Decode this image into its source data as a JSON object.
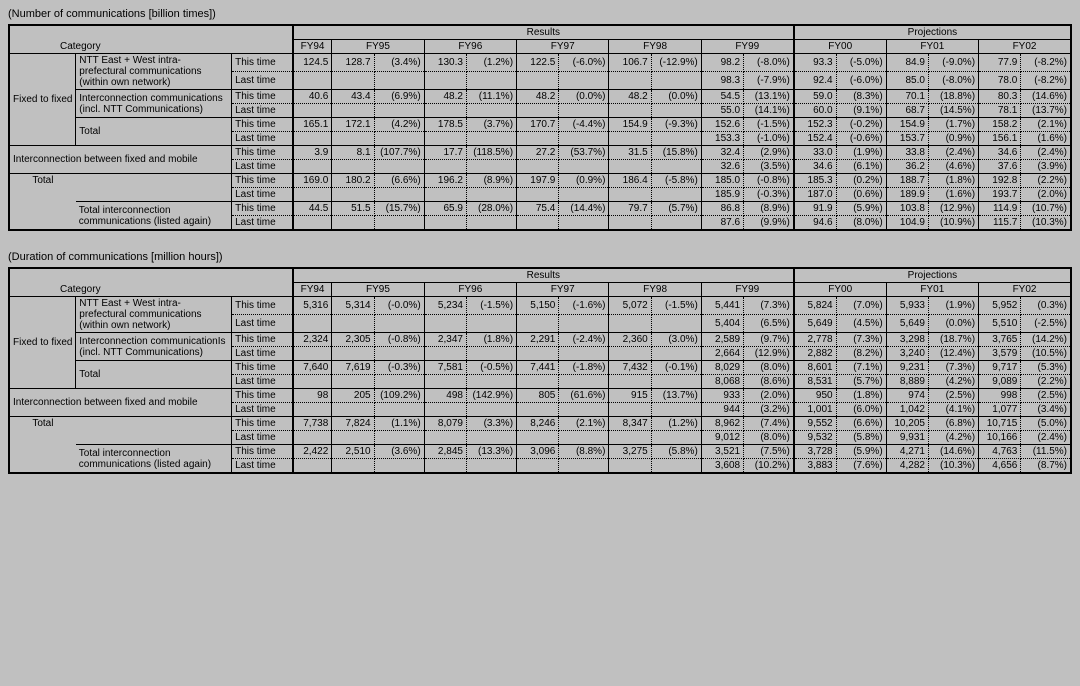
{
  "tables": [
    {
      "title": "(Number of communications [billion times])",
      "rows": [
        {
          "this": [
            "124.5",
            "128.7",
            "(3.4%)",
            "130.3",
            "(1.2%)",
            "122.5",
            "(-6.0%)",
            "106.7",
            "(-12.9%)",
            "98.2",
            "(-8.0%)",
            "93.3",
            "(-5.0%)",
            "84.9",
            "(-9.0%)",
            "77.9",
            "(-8.2%)"
          ],
          "last": [
            "",
            "",
            "",
            "",
            "",
            "",
            "",
            "",
            "",
            "98.3",
            "(-7.9%)",
            "92.4",
            "(-6.0%)",
            "85.0",
            "(-8.0%)",
            "78.0",
            "(-8.2%)"
          ]
        },
        {
          "this": [
            "40.6",
            "43.4",
            "(6.9%)",
            "48.2",
            "(11.1%)",
            "48.2",
            "(0.0%)",
            "48.2",
            "(0.0%)",
            "54.5",
            "(13.1%)",
            "59.0",
            "(8.3%)",
            "70.1",
            "(18.8%)",
            "80.3",
            "(14.6%)"
          ],
          "last": [
            "",
            "",
            "",
            "",
            "",
            "",
            "",
            "",
            "",
            "55.0",
            "(14.1%)",
            "60.0",
            "(9.1%)",
            "68.7",
            "(14.5%)",
            "78.1",
            "(13.7%)"
          ]
        },
        {
          "this": [
            "165.1",
            "172.1",
            "(4.2%)",
            "178.5",
            "(3.7%)",
            "170.7",
            "(-4.4%)",
            "154.9",
            "(-9.3%)",
            "152.6",
            "(-1.5%)",
            "152.3",
            "(-0.2%)",
            "154.9",
            "(1.7%)",
            "158.2",
            "(2.1%)"
          ],
          "last": [
            "",
            "",
            "",
            "",
            "",
            "",
            "",
            "",
            "",
            "153.3",
            "(-1.0%)",
            "152.4",
            "(-0.6%)",
            "153.7",
            "(0.9%)",
            "156.1",
            "(1.6%)"
          ]
        },
        {
          "this": [
            "3.9",
            "8.1",
            "(107.7%)",
            "17.7",
            "(118.5%)",
            "27.2",
            "(53.7%)",
            "31.5",
            "(15.8%)",
            "32.4",
            "(2.9%)",
            "33.0",
            "(1.9%)",
            "33.8",
            "(2.4%)",
            "34.6",
            "(2.4%)"
          ],
          "last": [
            "",
            "",
            "",
            "",
            "",
            "",
            "",
            "",
            "",
            "32.6",
            "(3.5%)",
            "34.6",
            "(6.1%)",
            "36.2",
            "(4.6%)",
            "37.6",
            "(3.9%)"
          ]
        },
        {
          "this": [
            "169.0",
            "180.2",
            "(6.6%)",
            "196.2",
            "(8.9%)",
            "197.9",
            "(0.9%)",
            "186.4",
            "(-5.8%)",
            "185.0",
            "(-0.8%)",
            "185.3",
            "(0.2%)",
            "188.7",
            "(1.8%)",
            "192.8",
            "(2.2%)"
          ],
          "last": [
            "",
            "",
            "",
            "",
            "",
            "",
            "",
            "",
            "",
            "185.9",
            "(-0.3%)",
            "187.0",
            "(0.6%)",
            "189.9",
            "(1.6%)",
            "193.7",
            "(2.0%)"
          ]
        },
        {
          "this": [
            "44.5",
            "51.5",
            "(15.7%)",
            "65.9",
            "(28.0%)",
            "75.4",
            "(14.4%)",
            "79.7",
            "(5.7%)",
            "86.8",
            "(8.9%)",
            "91.9",
            "(5.9%)",
            "103.8",
            "(12.9%)",
            "114.9",
            "(10.7%)"
          ],
          "last": [
            "",
            "",
            "",
            "",
            "",
            "",
            "",
            "",
            "",
            "87.6",
            "(9.9%)",
            "94.6",
            "(8.0%)",
            "104.9",
            "(10.9%)",
            "115.7",
            "(10.3%)"
          ]
        }
      ]
    },
    {
      "title": "(Duration of communications [million hours])",
      "rows": [
        {
          "this": [
            "5,316",
            "5,314",
            "(-0.0%)",
            "5,234",
            "(-1.5%)",
            "5,150",
            "(-1.6%)",
            "5,072",
            "(-1.5%)",
            "5,441",
            "(7.3%)",
            "5,824",
            "(7.0%)",
            "5,933",
            "(1.9%)",
            "5,952",
            "(0.3%)"
          ],
          "last": [
            "",
            "",
            "",
            "",
            "",
            "",
            "",
            "",
            "",
            "5,404",
            "(6.5%)",
            "5,649",
            "(4.5%)",
            "5,649",
            "(0.0%)",
            "5,510",
            "(-2.5%)"
          ]
        },
        {
          "this": [
            "2,324",
            "2,305",
            "(-0.8%)",
            "2,347",
            "(1.8%)",
            "2,291",
            "(-2.4%)",
            "2,360",
            "(3.0%)",
            "2,589",
            "(9.7%)",
            "2,778",
            "(7.3%)",
            "3,298",
            "(18.7%)",
            "3,765",
            "(14.2%)"
          ],
          "last": [
            "",
            "",
            "",
            "",
            "",
            "",
            "",
            "",
            "",
            "2,664",
            "(12.9%)",
            "2,882",
            "(8.2%)",
            "3,240",
            "(12.4%)",
            "3,579",
            "(10.5%)"
          ]
        },
        {
          "this": [
            "7,640",
            "7,619",
            "(-0.3%)",
            "7,581",
            "(-0.5%)",
            "7,441",
            "(-1.8%)",
            "7,432",
            "(-0.1%)",
            "8,029",
            "(8.0%)",
            "8,601",
            "(7.1%)",
            "9,231",
            "(7.3%)",
            "9,717",
            "(5.3%)"
          ],
          "last": [
            "",
            "",
            "",
            "",
            "",
            "",
            "",
            "",
            "",
            "8,068",
            "(8.6%)",
            "8,531",
            "(5.7%)",
            "8,889",
            "(4.2%)",
            "9,089",
            "(2.2%)"
          ]
        },
        {
          "this": [
            "98",
            "205",
            "(109.2%)",
            "498",
            "(142.9%)",
            "805",
            "(61.6%)",
            "915",
            "(13.7%)",
            "933",
            "(2.0%)",
            "950",
            "(1.8%)",
            "974",
            "(2.5%)",
            "998",
            "(2.5%)"
          ],
          "last": [
            "",
            "",
            "",
            "",
            "",
            "",
            "",
            "",
            "",
            "944",
            "(3.2%)",
            "1,001",
            "(6.0%)",
            "1,042",
            "(4.1%)",
            "1,077",
            "(3.4%)"
          ]
        },
        {
          "this": [
            "7,738",
            "7,824",
            "(1.1%)",
            "8,079",
            "(3.3%)",
            "8,246",
            "(2.1%)",
            "8,347",
            "(1.2%)",
            "8,962",
            "(7.4%)",
            "9,552",
            "(6.6%)",
            "10,205",
            "(6.8%)",
            "10,715",
            "(5.0%)"
          ],
          "last": [
            "",
            "",
            "",
            "",
            "",
            "",
            "",
            "",
            "",
            "9,012",
            "(8.0%)",
            "9,532",
            "(5.8%)",
            "9,931",
            "(4.2%)",
            "10,166",
            "(2.4%)"
          ]
        },
        {
          "this": [
            "2,422",
            "2,510",
            "(3.6%)",
            "2,845",
            "(13.3%)",
            "3,096",
            "(8.8%)",
            "3,275",
            "(5.8%)",
            "3,521",
            "(7.5%)",
            "3,728",
            "(5.9%)",
            "4,271",
            "(14.6%)",
            "4,763",
            "(11.5%)"
          ],
          "last": [
            "",
            "",
            "",
            "",
            "",
            "",
            "",
            "",
            "",
            "3,608",
            "(10.2%)",
            "3,883",
            "(7.6%)",
            "4,282",
            "(10.3%)",
            "4,656",
            "(8.7%)"
          ]
        }
      ]
    }
  ],
  "header": {
    "category": "Category",
    "results": "Results",
    "projections": "Projections",
    "years": [
      "FY94",
      "FY95",
      "FY96",
      "FY97",
      "FY98",
      "FY99",
      "FY00",
      "FY01",
      "FY02"
    ]
  },
  "rowLabels": {
    "fixed": "Fixed to fixed",
    "ntt": "NTT East + West intra-prefectural communications (within own network)",
    "inter": "Interconnection communications (incl. NTT Communications)",
    "interB": "Interconnection communicationIs (incl. NTT Communications)",
    "subTotal": "Total",
    "fm": "Interconnection between fixed and mobile",
    "total": "Total",
    "listed": "Total interconnection communications (listed again)",
    "thisTime": "This time",
    "lastTime": "Last time"
  }
}
